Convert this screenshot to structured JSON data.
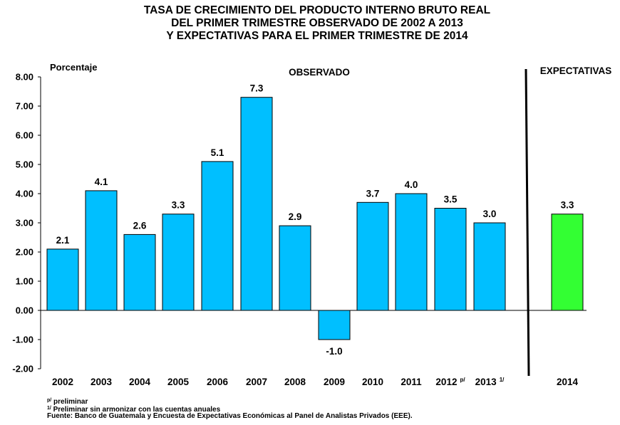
{
  "chart_data": {
    "type": "bar",
    "title_lines": [
      "TASA DE CRECIMIENTO DEL PRODUCTO INTERNO BRUTO REAL",
      "DEL PRIMER TRIMESTRE OBSERVADO DE  2002 A 2013",
      "Y EXPECTATIVAS PARA EL PRIMER TRIMESTRE  DE  2014"
    ],
    "ylabel": "Porcentaje",
    "ylim": [
      -2,
      8
    ],
    "yticks": [
      "8.00",
      "7.00",
      "6.00",
      "5.00",
      "4.00",
      "3.00",
      "2.00",
      "1.00",
      "0.00",
      "-1.00",
      "-2.00"
    ],
    "sections": {
      "observed": "OBSERVADO",
      "expected": "EXPECTATIVAS"
    },
    "categories": [
      {
        "label": "2002",
        "sup": ""
      },
      {
        "label": "2003",
        "sup": ""
      },
      {
        "label": "2004",
        "sup": ""
      },
      {
        "label": "2005",
        "sup": ""
      },
      {
        "label": "2006",
        "sup": ""
      },
      {
        "label": "2007",
        "sup": ""
      },
      {
        "label": "2008",
        "sup": ""
      },
      {
        "label": "2009",
        "sup": ""
      },
      {
        "label": "2010",
        "sup": ""
      },
      {
        "label": "2011",
        "sup": ""
      },
      {
        "label": "2012",
        "sup": "p/"
      },
      {
        "label": "2013",
        "sup": "1/"
      },
      {
        "label": "2014",
        "sup": ""
      }
    ],
    "values": [
      2.1,
      4.1,
      2.6,
      3.3,
      5.1,
      7.3,
      2.9,
      -1.0,
      3.7,
      4.0,
      3.5,
      3.0,
      3.3
    ],
    "value_labels": [
      "2.1",
      "4.1",
      "2.6",
      "3.3",
      "5.1",
      "7.3",
      "2.9",
      "-1.0",
      "3.7",
      "4.0",
      "3.5",
      "3.0",
      "3.3"
    ],
    "colors": {
      "observed": "#00BFFF",
      "expected": "#33FF33",
      "border": "#000000"
    },
    "legend": "none",
    "grid": false
  },
  "footnotes": [
    {
      "sup": "p/",
      "text": " preliminar"
    },
    {
      "sup": "1/",
      "text": " Preliminar sin armonizar con las cuentas anuales"
    },
    {
      "sup": "",
      "text": "Fuente:  Banco de Guatemala y Encuesta de Expectativas Económicas al Panel de Analistas Privados (EEE)."
    }
  ]
}
